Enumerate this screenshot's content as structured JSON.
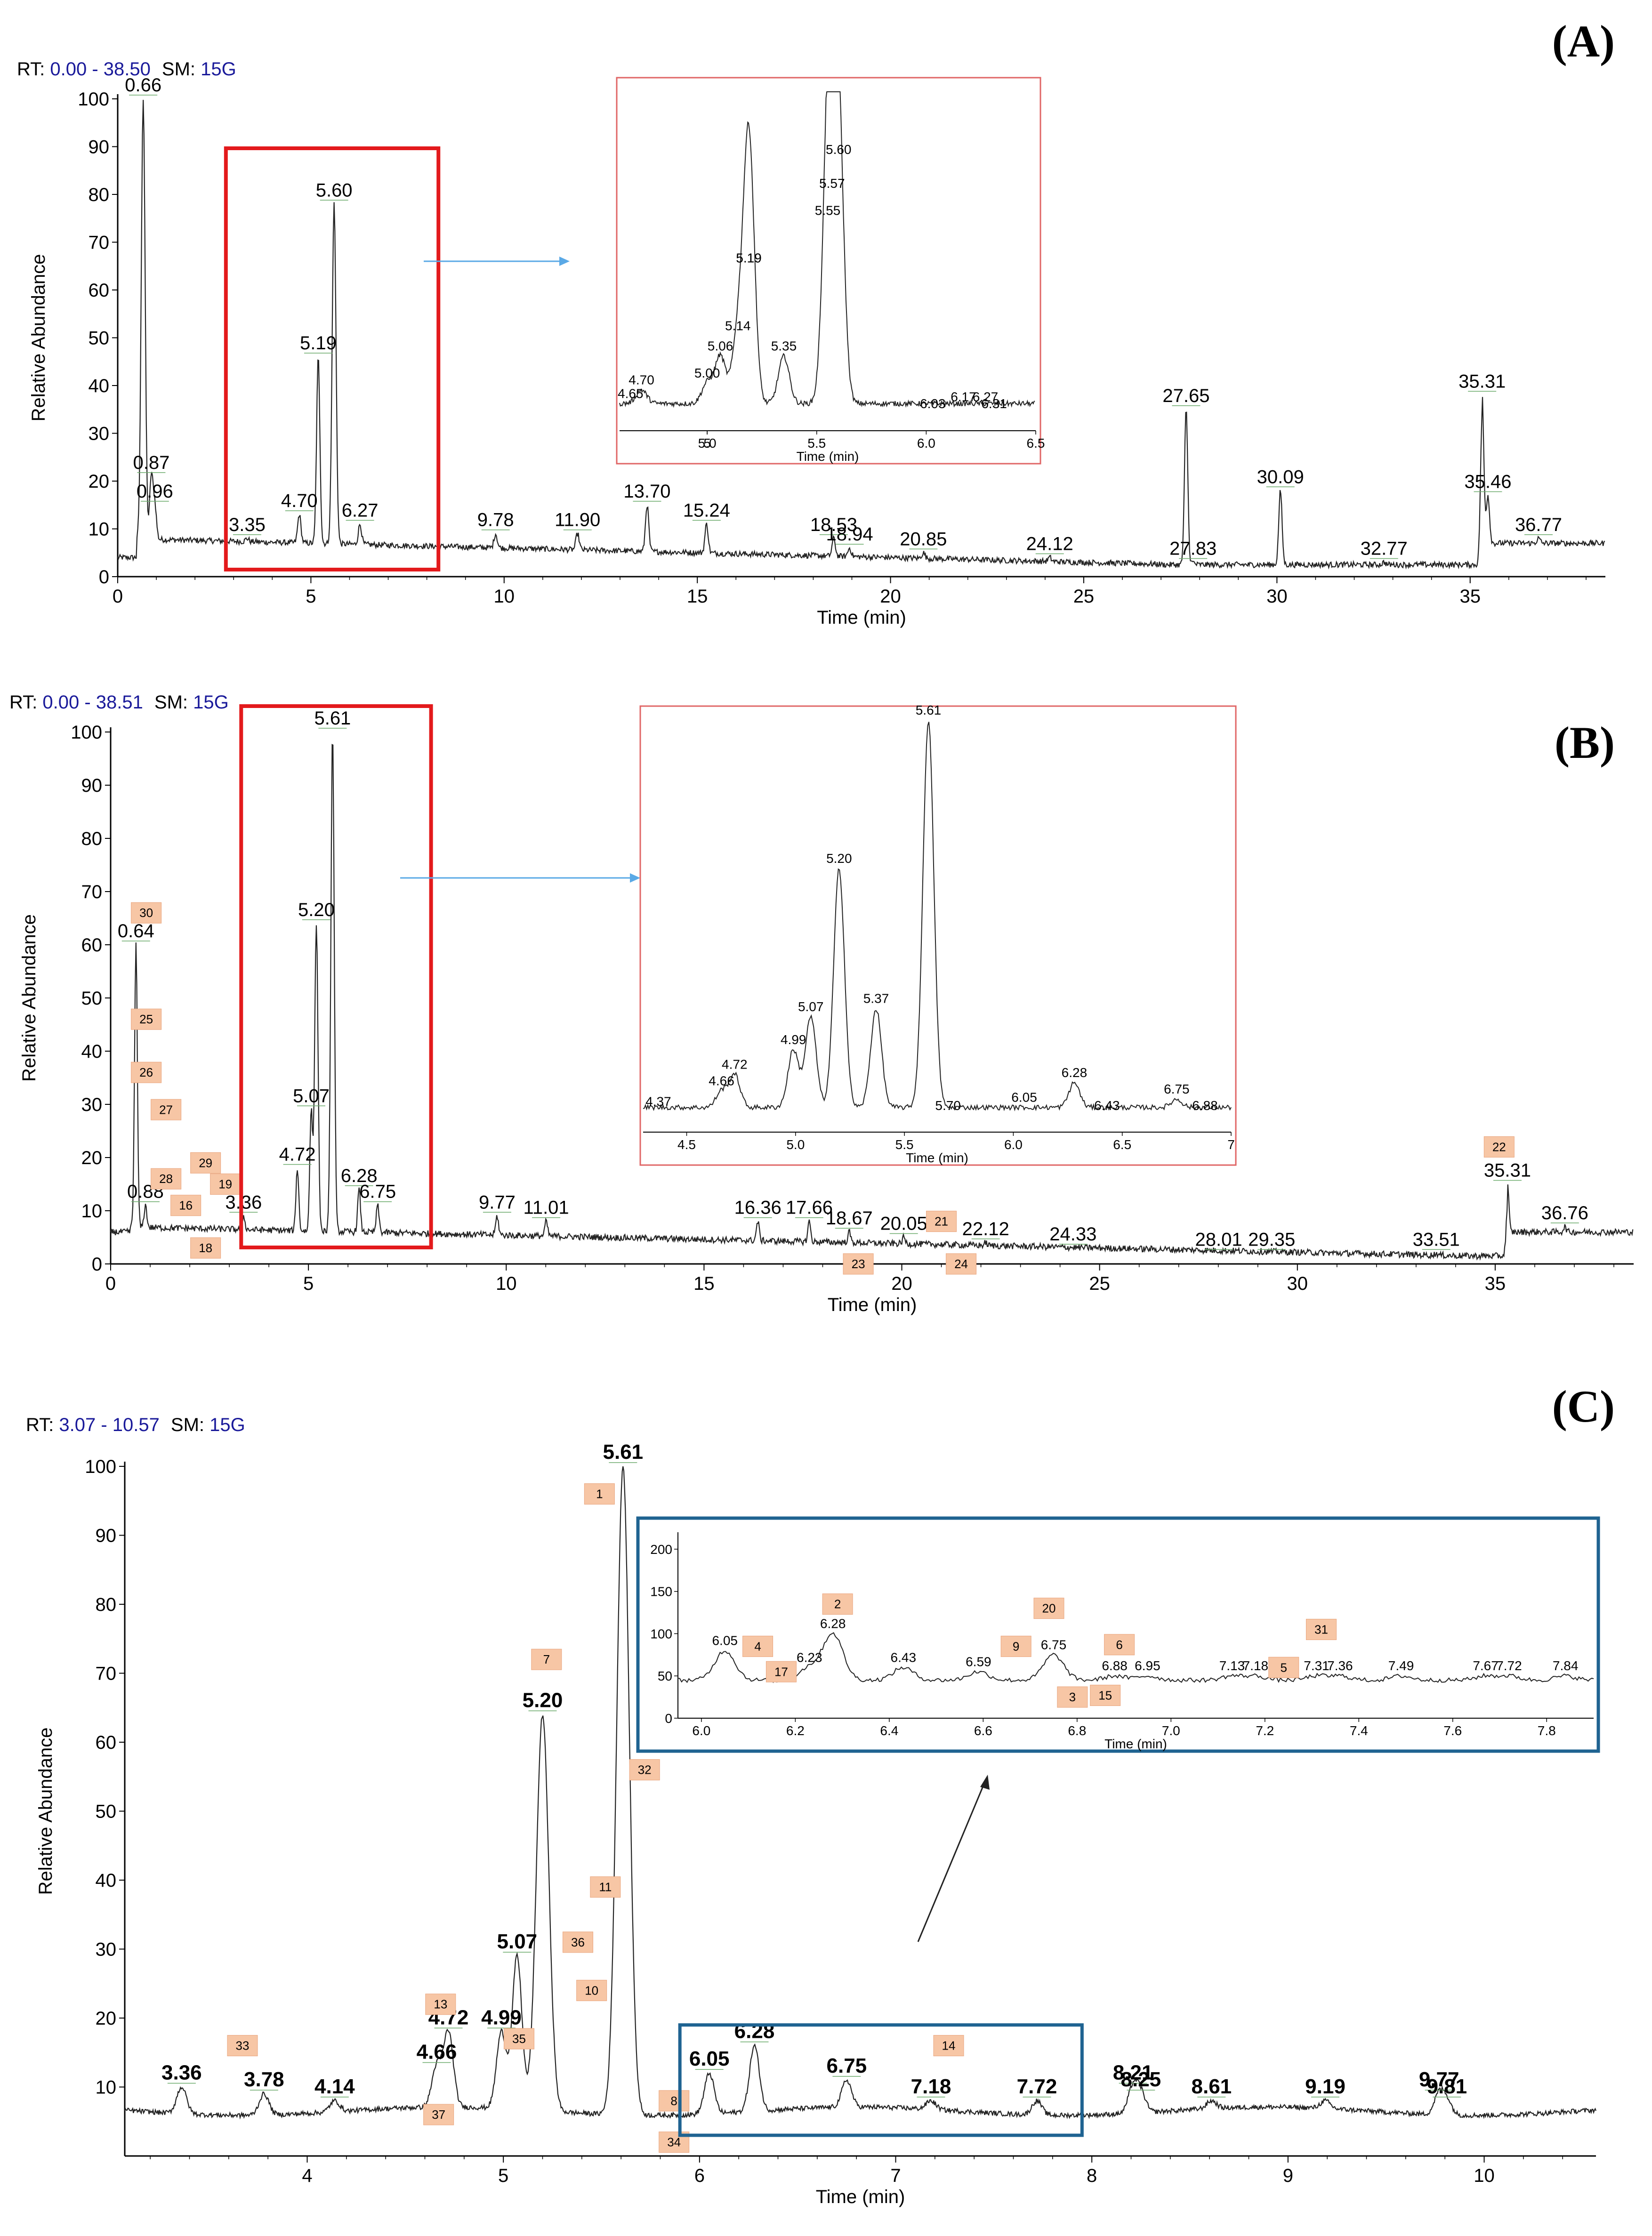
{
  "colors": {
    "trace": "#222222",
    "red_box": "#e31a1c",
    "inset_border": "#e06666",
    "blue_box": "#1f6391",
    "tag_fill": "#f7c6a5",
    "arrow": "#5aa9e6",
    "rt_blue": "#1a1a9a",
    "baseline_green": "#6aaa6a"
  },
  "chart_data": [
    {
      "type": "line",
      "panel_label": "(A)",
      "rt_label": "RT:",
      "rt_range": "0.00 - 38.50",
      "sm_label": "SM:",
      "sm_value": "15G",
      "xlabel": "Time (min)",
      "ylabel": "Relative Abundance",
      "xlim": [
        0,
        38.5
      ],
      "ylim": [
        0,
        100
      ],
      "x_ticks": [
        "0",
        "5",
        "10",
        "15",
        "20",
        "25",
        "30",
        "35"
      ],
      "y_ticks": [
        "0",
        "10",
        "20",
        "30",
        "40",
        "50",
        "60",
        "70",
        "80",
        "90",
        "100"
      ],
      "peaks": [
        {
          "x": 0.66,
          "y": 100,
          "label": "0.66"
        },
        {
          "x": 0.87,
          "y": 21,
          "label": "0.87"
        },
        {
          "x": 0.96,
          "y": 15,
          "label": "0.96"
        },
        {
          "x": 3.35,
          "y": 8,
          "label": "3.35"
        },
        {
          "x": 4.7,
          "y": 13,
          "label": "4.70"
        },
        {
          "x": 5.19,
          "y": 46,
          "label": "5.19"
        },
        {
          "x": 5.6,
          "y": 78,
          "label": "5.60"
        },
        {
          "x": 6.27,
          "y": 11,
          "label": "6.27"
        },
        {
          "x": 9.78,
          "y": 9,
          "label": "9.78"
        },
        {
          "x": 11.9,
          "y": 9,
          "label": "11.90"
        },
        {
          "x": 13.7,
          "y": 15,
          "label": "13.70"
        },
        {
          "x": 15.24,
          "y": 11,
          "label": "15.24"
        },
        {
          "x": 18.53,
          "y": 8,
          "label": "18.53"
        },
        {
          "x": 18.94,
          "y": 6,
          "label": "18.94"
        },
        {
          "x": 20.85,
          "y": 5,
          "label": "20.85"
        },
        {
          "x": 24.12,
          "y": 4,
          "label": "24.12"
        },
        {
          "x": 27.65,
          "y": 35,
          "label": "27.65"
        },
        {
          "x": 27.83,
          "y": 3,
          "label": "27.83"
        },
        {
          "x": 30.09,
          "y": 18,
          "label": "30.09"
        },
        {
          "x": 32.77,
          "y": 3,
          "label": "32.77"
        },
        {
          "x": 35.31,
          "y": 38,
          "label": "35.31"
        },
        {
          "x": 35.46,
          "y": 17,
          "label": "35.46"
        },
        {
          "x": 36.77,
          "y": 8,
          "label": "36.77"
        }
      ],
      "inset": {
        "xlim": [
          4.6,
          6.5
        ],
        "x_ticks": [
          "5",
          "5.0",
          "5.5",
          "6.0",
          "6.5"
        ],
        "xlabel": "Time (min)",
        "peaks": [
          {
            "x": 4.65,
            "y": 8,
            "label": "4.65"
          },
          {
            "x": 4.7,
            "y": 12,
            "label": "4.70"
          },
          {
            "x": 5.0,
            "y": 14,
            "label": "5.00"
          },
          {
            "x": 5.06,
            "y": 22,
            "label": "5.06"
          },
          {
            "x": 5.14,
            "y": 28,
            "label": "5.14"
          },
          {
            "x": 5.19,
            "y": 48,
            "label": "5.19"
          },
          {
            "x": 5.19,
            "y": 48,
            "label": "5.19"
          },
          {
            "x": 5.35,
            "y": 22,
            "label": "5.35"
          },
          {
            "x": 5.55,
            "y": 62,
            "label": "5.55"
          },
          {
            "x": 5.57,
            "y": 70,
            "label": "5.57"
          },
          {
            "x": 5.6,
            "y": 80,
            "label": "5.60"
          },
          {
            "x": 6.03,
            "y": 5,
            "label": "6.03"
          },
          {
            "x": 6.17,
            "y": 7,
            "label": "6.17"
          },
          {
            "x": 6.27,
            "y": 7,
            "label": "6.27"
          },
          {
            "x": 6.31,
            "y": 5,
            "label": "6.31"
          }
        ]
      }
    },
    {
      "type": "line",
      "panel_label": "(B)",
      "rt_label": "RT:",
      "rt_range": "0.00 - 38.51",
      "sm_label": "SM:",
      "sm_value": "15G",
      "xlabel": "Time (min)",
      "ylabel": "Relative Abundance",
      "xlim": [
        0,
        38.5
      ],
      "ylim": [
        0,
        100
      ],
      "x_ticks": [
        "0",
        "5",
        "10",
        "15",
        "20",
        "25",
        "30",
        "35"
      ],
      "y_ticks": [
        "0",
        "10",
        "20",
        "30",
        "40",
        "50",
        "60",
        "70",
        "80",
        "90",
        "100"
      ],
      "peaks": [
        {
          "x": 0.64,
          "y": 60,
          "label": "0.64"
        },
        {
          "x": 0.88,
          "y": 11,
          "label": "0.88"
        },
        {
          "x": 3.36,
          "y": 9,
          "label": "3.36"
        },
        {
          "x": 4.72,
          "y": 18,
          "label": "4.72"
        },
        {
          "x": 5.07,
          "y": 29,
          "label": "5.07"
        },
        {
          "x": 5.2,
          "y": 64,
          "label": "5.20"
        },
        {
          "x": 5.61,
          "y": 100,
          "label": "5.61"
        },
        {
          "x": 6.28,
          "y": 14,
          "label": "6.28"
        },
        {
          "x": 6.75,
          "y": 11,
          "label": "6.75"
        },
        {
          "x": 9.77,
          "y": 9,
          "label": "9.77"
        },
        {
          "x": 11.01,
          "y": 8,
          "label": "11.01"
        },
        {
          "x": 16.36,
          "y": 8,
          "label": "16.36"
        },
        {
          "x": 17.66,
          "y": 8,
          "label": "17.66"
        },
        {
          "x": 18.67,
          "y": 6,
          "label": "18.67"
        },
        {
          "x": 20.05,
          "y": 5,
          "label": "20.05"
        },
        {
          "x": 22.12,
          "y": 4,
          "label": "22.12"
        },
        {
          "x": 24.33,
          "y": 3,
          "label": "24.33"
        },
        {
          "x": 28.01,
          "y": 2,
          "label": "28.01"
        },
        {
          "x": 29.35,
          "y": 2,
          "label": "29.35"
        },
        {
          "x": 33.51,
          "y": 2,
          "label": "33.51"
        },
        {
          "x": 35.31,
          "y": 15,
          "label": "35.31"
        },
        {
          "x": 36.76,
          "y": 7,
          "label": "36.76"
        }
      ],
      "tags": [
        {
          "n": "30",
          "x": 0.9,
          "y": 66
        },
        {
          "n": "25",
          "x": 0.9,
          "y": 46
        },
        {
          "n": "26",
          "x": 0.9,
          "y": 36
        },
        {
          "n": "27",
          "x": 1.4,
          "y": 29
        },
        {
          "n": "29",
          "x": 2.4,
          "y": 19
        },
        {
          "n": "28",
          "x": 1.4,
          "y": 16
        },
        {
          "n": "19",
          "x": 2.9,
          "y": 15
        },
        {
          "n": "16",
          "x": 1.9,
          "y": 11
        },
        {
          "n": "18",
          "x": 2.4,
          "y": 3
        },
        {
          "n": "21",
          "x": 21.0,
          "y": 8
        },
        {
          "n": "23",
          "x": 18.9,
          "y": 0
        },
        {
          "n": "24",
          "x": 21.5,
          "y": 0
        },
        {
          "n": "22",
          "x": 35.1,
          "y": 22
        }
      ],
      "inset": {
        "xlim": [
          4.3,
          7.0
        ],
        "x_ticks": [
          "4.5",
          "5.0",
          "5.5",
          "6.0",
          "6.5",
          "7"
        ],
        "xlabel": "Time (min)",
        "peaks": [
          {
            "x": 4.37,
            "y": 5,
            "label": "4.37"
          },
          {
            "x": 4.66,
            "y": 10,
            "label": "4.66"
          },
          {
            "x": 4.72,
            "y": 14,
            "label": "4.72"
          },
          {
            "x": 4.99,
            "y": 20,
            "label": "4.99"
          },
          {
            "x": 5.07,
            "y": 28,
            "label": "5.07"
          },
          {
            "x": 5.2,
            "y": 64,
            "label": "5.20"
          },
          {
            "x": 5.37,
            "y": 30,
            "label": "5.37"
          },
          {
            "x": 5.61,
            "y": 100,
            "label": "5.61"
          },
          {
            "x": 5.7,
            "y": 4,
            "label": "5.70"
          },
          {
            "x": 6.05,
            "y": 6,
            "label": "6.05"
          },
          {
            "x": 6.28,
            "y": 12,
            "label": "6.28"
          },
          {
            "x": 6.43,
            "y": 4,
            "label": "6.43"
          },
          {
            "x": 6.75,
            "y": 8,
            "label": "6.75"
          },
          {
            "x": 6.88,
            "y": 4,
            "label": "6.88"
          }
        ]
      }
    },
    {
      "type": "line",
      "panel_label": "(C)",
      "rt_label": "RT:",
      "rt_range": "3.07 - 10.57",
      "sm_label": "SM:",
      "sm_value": "15G",
      "xlabel": "Time (min)",
      "ylabel": "Relative Abundance",
      "xlim": [
        3.07,
        10.57
      ],
      "ylim": [
        0,
        100
      ],
      "x_ticks": [
        "4",
        "5",
        "6",
        "7",
        "8",
        "9",
        "10"
      ],
      "y_ticks": [
        "10",
        "20",
        "30",
        "40",
        "50",
        "60",
        "70",
        "80",
        "90",
        "100"
      ],
      "peaks": [
        {
          "x": 3.36,
          "y": 10,
          "label": "3.36"
        },
        {
          "x": 3.78,
          "y": 9,
          "label": "3.78"
        },
        {
          "x": 4.14,
          "y": 8,
          "label": "4.14"
        },
        {
          "x": 4.66,
          "y": 13,
          "label": "4.66"
        },
        {
          "x": 4.72,
          "y": 18,
          "label": "4.72"
        },
        {
          "x": 4.99,
          "y": 18,
          "label": "4.99"
        },
        {
          "x": 5.07,
          "y": 29,
          "label": "5.07"
        },
        {
          "x": 5.2,
          "y": 64,
          "label": "5.20"
        },
        {
          "x": 5.61,
          "y": 100,
          "label": "5.61"
        },
        {
          "x": 6.05,
          "y": 12,
          "label": "6.05"
        },
        {
          "x": 6.28,
          "y": 16,
          "label": "6.28"
        },
        {
          "x": 6.75,
          "y": 11,
          "label": "6.75"
        },
        {
          "x": 7.18,
          "y": 8,
          "label": "7.18"
        },
        {
          "x": 7.72,
          "y": 8,
          "label": "7.72"
        },
        {
          "x": 8.21,
          "y": 10,
          "label": "8.21"
        },
        {
          "x": 8.25,
          "y": 9,
          "label": "8.25"
        },
        {
          "x": 8.61,
          "y": 8,
          "label": "8.61"
        },
        {
          "x": 9.19,
          "y": 8,
          "label": "9.19"
        },
        {
          "x": 9.77,
          "y": 9,
          "label": "9.77"
        },
        {
          "x": 9.81,
          "y": 8,
          "label": "9.81"
        }
      ],
      "tags": [
        {
          "n": "1",
          "x": 5.49,
          "y": 96
        },
        {
          "n": "7",
          "x": 5.22,
          "y": 72
        },
        {
          "n": "32",
          "x": 5.72,
          "y": 56
        },
        {
          "n": "11",
          "x": 5.52,
          "y": 39
        },
        {
          "n": "36",
          "x": 5.38,
          "y": 31
        },
        {
          "n": "10",
          "x": 5.45,
          "y": 24
        },
        {
          "n": "13",
          "x": 4.68,
          "y": 22
        },
        {
          "n": "35",
          "x": 5.08,
          "y": 17
        },
        {
          "n": "33",
          "x": 3.67,
          "y": 16
        },
        {
          "n": "37",
          "x": 4.67,
          "y": 6
        },
        {
          "n": "8",
          "x": 5.87,
          "y": 8
        },
        {
          "n": "34",
          "x": 5.87,
          "y": 2
        },
        {
          "n": "14",
          "x": 7.27,
          "y": 16
        }
      ],
      "inset": {
        "xlim": [
          5.95,
          7.9
        ],
        "ylim": [
          0,
          220
        ],
        "x_ticks": [
          "6.0",
          "6.2",
          "6.4",
          "6.6",
          "6.8",
          "7.0",
          "7.2",
          "7.4",
          "7.6",
          "7.8"
        ],
        "y_ticks": [
          "0",
          "50",
          "100",
          "150",
          "200"
        ],
        "xlabel": "Time (min)",
        "peaks": [
          {
            "x": 6.05,
            "y": 80,
            "label": "6.05"
          },
          {
            "x": 6.23,
            "y": 60,
            "label": "6.23"
          },
          {
            "x": 6.28,
            "y": 100,
            "label": "6.28"
          },
          {
            "x": 6.43,
            "y": 60,
            "label": "6.43"
          },
          {
            "x": 6.59,
            "y": 55,
            "label": "6.59"
          },
          {
            "x": 6.75,
            "y": 75,
            "label": "6.75"
          },
          {
            "x": 6.88,
            "y": 50,
            "label": "6.88"
          },
          {
            "x": 6.95,
            "y": 50,
            "label": "6.95"
          },
          {
            "x": 7.13,
            "y": 50,
            "label": "7.13"
          },
          {
            "x": 7.18,
            "y": 50,
            "label": "7.18"
          },
          {
            "x": 7.31,
            "y": 50,
            "label": "7.31"
          },
          {
            "x": 7.36,
            "y": 50,
            "label": "7.36"
          },
          {
            "x": 7.49,
            "y": 50,
            "label": "7.49"
          },
          {
            "x": 7.67,
            "y": 50,
            "label": "7.67"
          },
          {
            "x": 7.72,
            "y": 50,
            "label": "7.72"
          },
          {
            "x": 7.84,
            "y": 50,
            "label": "7.84"
          }
        ],
        "tags": [
          {
            "n": "2",
            "x": 6.29,
            "y": 135
          },
          {
            "n": "4",
            "x": 6.12,
            "y": 85
          },
          {
            "n": "17",
            "x": 6.17,
            "y": 55
          },
          {
            "n": "9",
            "x": 6.67,
            "y": 85
          },
          {
            "n": "20",
            "x": 6.74,
            "y": 130
          },
          {
            "n": "6",
            "x": 6.89,
            "y": 87
          },
          {
            "n": "3",
            "x": 6.79,
            "y": 25
          },
          {
            "n": "15",
            "x": 6.86,
            "y": 27
          },
          {
            "n": "5",
            "x": 7.24,
            "y": 60
          },
          {
            "n": "31",
            "x": 7.32,
            "y": 105
          }
        ]
      }
    }
  ]
}
